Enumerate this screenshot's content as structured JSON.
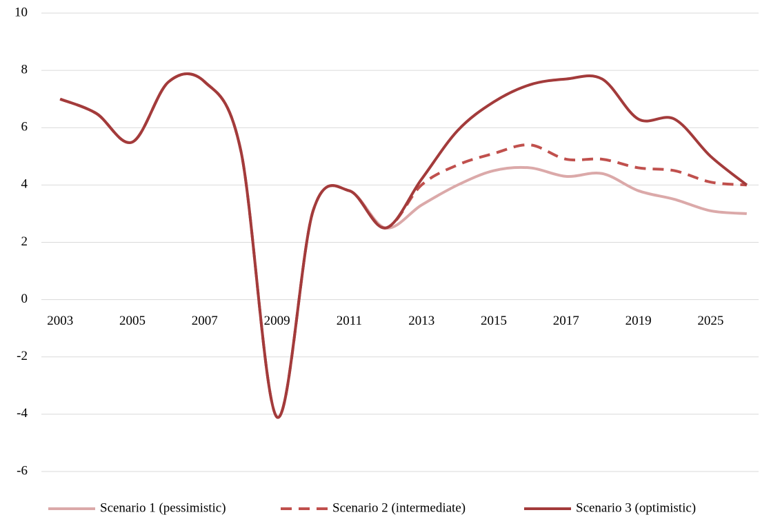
{
  "chart_data": {
    "type": "line",
    "categories": [
      "2003",
      null,
      "2005",
      null,
      "2007",
      null,
      "2009",
      null,
      "2011",
      null,
      "2013",
      null,
      "2015",
      null,
      "2017",
      null,
      "2019",
      null,
      "2025",
      null
    ],
    "series": [
      {
        "name": "Scenario 1 (pessimistic)",
        "color": "#dba9a9",
        "dash": false,
        "values": [
          7.0,
          6.5,
          5.5,
          7.6,
          7.6,
          5.2,
          -4.1,
          3.1,
          3.8,
          2.5,
          3.3,
          4.0,
          4.5,
          4.6,
          4.3,
          4.4,
          3.8,
          3.5,
          3.1,
          3.0
        ]
      },
      {
        "name": "Scenario 2 (intermediate)",
        "color": "#c0504d",
        "dash": true,
        "values": [
          7.0,
          6.5,
          5.5,
          7.6,
          7.6,
          5.2,
          -4.1,
          3.1,
          3.8,
          2.5,
          4.0,
          4.7,
          5.1,
          5.4,
          4.9,
          4.9,
          4.6,
          4.5,
          4.1,
          4.0
        ]
      },
      {
        "name": "Scenario 3 (optimistic)",
        "color": "#a33b3b",
        "dash": false,
        "values": [
          7.0,
          6.5,
          5.5,
          7.6,
          7.6,
          5.2,
          -4.1,
          3.1,
          3.8,
          2.5,
          4.2,
          5.9,
          6.9,
          7.5,
          7.7,
          7.7,
          6.3,
          6.3,
          5.0,
          4.0
        ]
      }
    ],
    "ylim": [
      -6,
      10
    ],
    "yticks": [
      -6,
      -4,
      -2,
      0,
      2,
      4,
      6,
      8,
      10
    ],
    "grid": true,
    "legend": "bottom"
  }
}
